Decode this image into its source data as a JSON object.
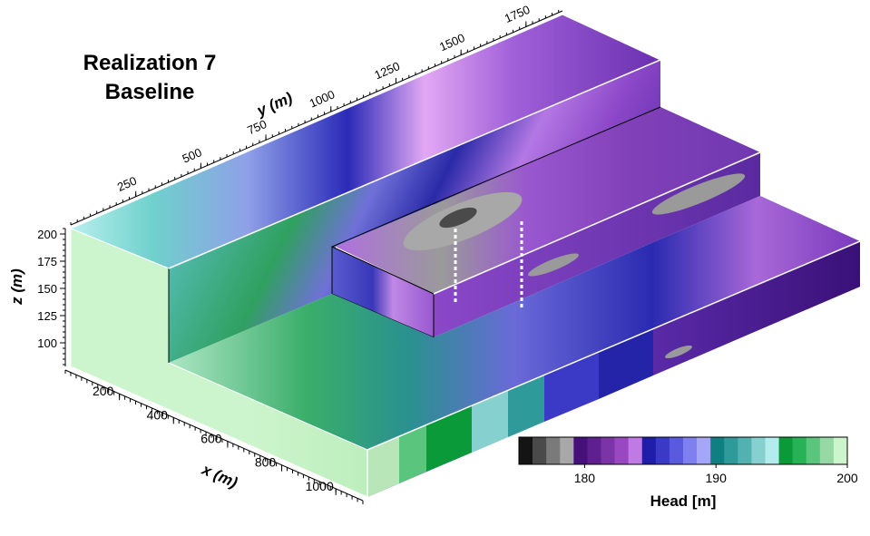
{
  "title": {
    "line1": "Realization 7",
    "line2": "Baseline"
  },
  "axes": {
    "x": {
      "label": "x (m)",
      "ticks": [
        "200",
        "400",
        "600",
        "800",
        "1000"
      ]
    },
    "y": {
      "label": "y (m)",
      "ticks": [
        "250",
        "500",
        "750",
        "1000",
        "1250",
        "1500",
        "1750"
      ]
    },
    "z": {
      "label": "z (m)",
      "ticks": [
        "200",
        "175",
        "150",
        "125",
        "100"
      ]
    }
  },
  "colorbar": {
    "label": "Head [m]",
    "ticks": [
      "180",
      "190",
      "200"
    ],
    "range": [
      175,
      200
    ],
    "colors": [
      "#141414",
      "#4a4a4a",
      "#7a7a7a",
      "#a8a8a8",
      "#46107a",
      "#5e1f90",
      "#7b33a8",
      "#9a48c2",
      "#c07ae6",
      "#1e1ea8",
      "#3a3ac6",
      "#5a5ade",
      "#7f7ff0",
      "#a6a6f8",
      "#0f7f82",
      "#2f9a9a",
      "#52b2b2",
      "#86d0d0",
      "#b3ecec",
      "#0a9a3a",
      "#27b257",
      "#5ac57c",
      "#96d9a4",
      "#cdf5cd"
    ]
  }
}
